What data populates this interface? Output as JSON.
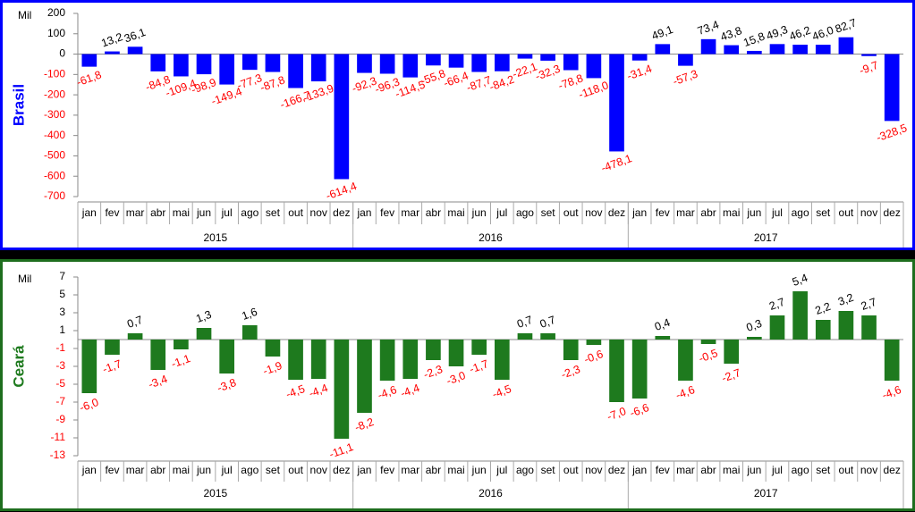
{
  "chart_data": [
    {
      "type": "bar",
      "title": "Brasil",
      "y_label": "Mil",
      "color": "#0000ff",
      "frame_color": "#0000ff",
      "label_colors": {
        "positive": "#000000",
        "negative": "#ff0000"
      },
      "categories": [
        "jan",
        "fev",
        "mar",
        "abr",
        "mai",
        "jun",
        "jul",
        "ago",
        "set",
        "out",
        "nov",
        "dez",
        "jan",
        "fev",
        "mar",
        "abr",
        "mai",
        "jun",
        "jul",
        "ago",
        "set",
        "out",
        "nov",
        "dez",
        "jan",
        "fev",
        "mar",
        "abr",
        "mai",
        "jun",
        "jul",
        "ago",
        "set",
        "out",
        "nov",
        "dez"
      ],
      "groups": [
        "2015",
        "2016",
        "2017"
      ],
      "values": [
        -61.8,
        13.2,
        36.1,
        -84.8,
        -109.4,
        -98.9,
        -149.4,
        -77.3,
        -87.8,
        -166.7,
        -133.9,
        -614.4,
        -92.3,
        -96.3,
        -114.5,
        -55.8,
        -66.4,
        -87.7,
        -84.2,
        -22.1,
        -32.3,
        -78.8,
        -118.0,
        -478.1,
        -31.4,
        49.1,
        -57.3,
        73.4,
        43.8,
        15.8,
        49.3,
        46.2,
        46.0,
        82.7,
        -9.7,
        -328.5
      ],
      "value_labels": [
        "-61,8",
        "13,2",
        "36,1",
        "-84,8",
        "-109,4",
        "-98,9",
        "-149,4",
        "-77,3",
        "-87,8",
        "-166,7",
        "-133,9",
        "-614,4",
        "-92,3",
        "-96,3",
        "-114,5",
        "-55,8",
        "-66,4",
        "-87,7",
        "-84,2",
        "-22,1",
        "-32,3",
        "-78,8",
        "-118,0",
        "-478,1",
        "-31,4",
        "49,1",
        "-57,3",
        "73,4",
        "43,8",
        "15,8",
        "49,3",
        "46,2",
        "46,0",
        "82,7",
        "-9,7",
        "-328,5"
      ],
      "ylim": [
        -700,
        200
      ],
      "yticks": [
        200,
        100,
        0,
        -100,
        -200,
        -300,
        -400,
        -500,
        -600,
        -700
      ]
    },
    {
      "type": "bar",
      "title": "Ceará",
      "y_label": "Mil",
      "color": "#1e7a1e",
      "frame_color": "#1e6e1e",
      "label_colors": {
        "positive": "#000000",
        "negative": "#ff0000"
      },
      "categories": [
        "jan",
        "fev",
        "mar",
        "abr",
        "mai",
        "jun",
        "jul",
        "ago",
        "set",
        "out",
        "nov",
        "dez",
        "jan",
        "fev",
        "mar",
        "abr",
        "mai",
        "jun",
        "jul",
        "ago",
        "set",
        "out",
        "nov",
        "dez",
        "jan",
        "fev",
        "mar",
        "abr",
        "mai",
        "jun",
        "jul",
        "ago",
        "set",
        "out",
        "nov",
        "dez"
      ],
      "groups": [
        "2015",
        "2016",
        "2017"
      ],
      "values": [
        -6.0,
        -1.7,
        0.7,
        -3.4,
        -1.1,
        1.3,
        -3.8,
        1.6,
        -1.9,
        -4.5,
        -4.4,
        -11.1,
        -8.2,
        -4.6,
        -4.4,
        -2.3,
        -3.0,
        -1.7,
        -4.5,
        0.7,
        0.7,
        -2.3,
        -0.6,
        -7.0,
        -6.6,
        0.4,
        -4.6,
        -0.5,
        -2.7,
        0.3,
        2.7,
        5.4,
        2.2,
        3.2,
        2.7,
        -4.6
      ],
      "value_labels": [
        "-6,0",
        "-1,7",
        "0,7",
        "-3,4",
        "-1,1",
        "1,3",
        "-3,8",
        "1,6",
        "-1,9",
        "-4,5",
        "-4,4",
        "-11,1",
        "-8,2",
        "-4,6",
        "-4,4",
        "-2,3",
        "-3,0",
        "-1,7",
        "-4,5",
        "0,7",
        "0,7",
        "-2,3",
        "-0,6",
        "-7,0",
        "-6,6",
        "0,4",
        "-4,6",
        "-0,5",
        "-2,7",
        "0,3",
        "2,7",
        "5,4",
        "2,2",
        "3,2",
        "2,7",
        "-4,6"
      ],
      "ylim": [
        -13,
        7
      ],
      "yticks": [
        7,
        5,
        3,
        1,
        -1,
        -3,
        -5,
        -7,
        -9,
        -11,
        -13
      ]
    }
  ]
}
